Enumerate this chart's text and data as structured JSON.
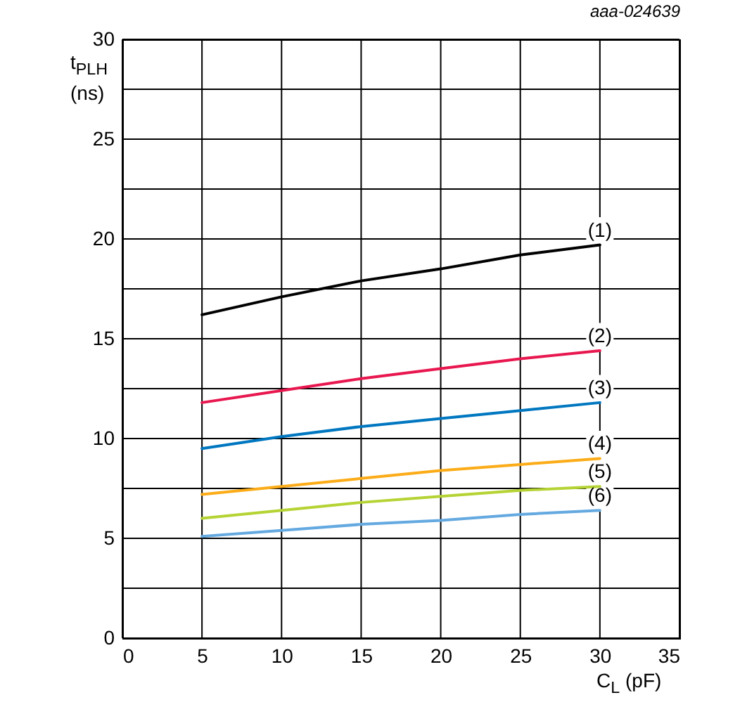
{
  "chart_data": {
    "type": "line",
    "xlabel": "C$_{L}$ (pF)",
    "ylabel": "t$_{PLH}$ (ns)",
    "annotations": [
      "aaa-024639"
    ],
    "x": [
      5,
      10,
      15,
      20,
      25,
      30
    ],
    "series": [
      {
        "name": "(1)",
        "color": "#000000",
        "values": [
          16.2,
          17.1,
          17.9,
          18.5,
          19.2,
          19.7
        ]
      },
      {
        "name": "(2)",
        "color": "#e8174f",
        "values": [
          11.8,
          12.4,
          13.0,
          13.5,
          14.0,
          14.4
        ]
      },
      {
        "name": "(3)",
        "color": "#0077c0",
        "values": [
          9.5,
          10.1,
          10.6,
          11.0,
          11.4,
          11.8
        ]
      },
      {
        "name": "(4)",
        "color": "#fbac18",
        "values": [
          7.2,
          7.6,
          8.0,
          8.4,
          8.7,
          9.0
        ]
      },
      {
        "name": "(5)",
        "color": "#b5d334",
        "values": [
          6.0,
          6.4,
          6.8,
          7.1,
          7.4,
          7.6
        ]
      },
      {
        "name": "(6)",
        "color": "#64a9e0",
        "values": [
          5.1,
          5.4,
          5.7,
          5.9,
          6.2,
          6.4
        ]
      }
    ],
    "xlim": [
      0,
      35
    ],
    "xticks": [
      0,
      5,
      10,
      15,
      20,
      25,
      30,
      35
    ],
    "ylim": [
      0,
      30
    ],
    "yticks": [
      0,
      {
        "value": 2.5,
        "label": null
      },
      5,
      {
        "value": 7.5,
        "label": null
      },
      10,
      {
        "value": 12.5,
        "label": null
      },
      15,
      {
        "value": 17.5,
        "label": null
      },
      20,
      {
        "value": 22.5,
        "label": null
      },
      25,
      {
        "value": 27.5,
        "label": null
      },
      30
    ],
    "grid": true,
    "legend": false,
    "marker": "none",
    "line_style": "solid"
  }
}
